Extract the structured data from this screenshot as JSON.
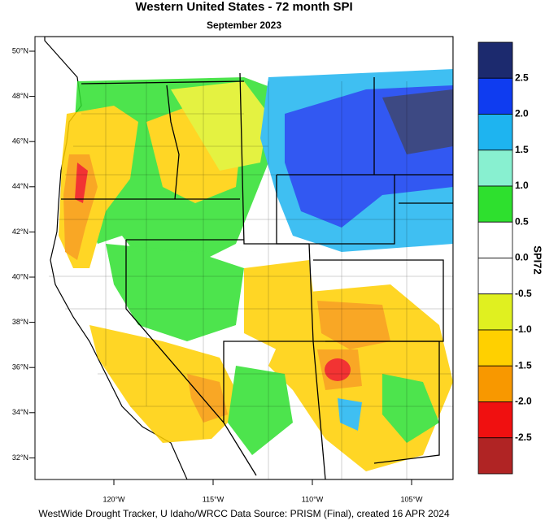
{
  "header": {
    "title": "Western United States - 72 month SPI",
    "subtitle": "September 2023"
  },
  "map": {
    "lat_labels": [
      "50°N",
      "48°N",
      "46°N",
      "44°N",
      "42°N",
      "40°N",
      "38°N",
      "36°N",
      "34°N",
      "32°N"
    ],
    "lon_labels": [
      "120°W",
      "115°W",
      "110°W",
      "105°W"
    ]
  },
  "colorbar": {
    "title": "SPI72",
    "labels": [
      "2.5",
      "2.0",
      "1.5",
      "1.0",
      "0.5",
      "0.0",
      "-0.5",
      "-1.0",
      "-1.5",
      "-2.0",
      "-2.5"
    ],
    "colors": [
      "#1c2a6e",
      "#0f3cf0",
      "#1eb4f0",
      "#88f0d0",
      "#2ee02e",
      "#ffffff",
      "#ffffff",
      "#e0f020",
      "#ffd000",
      "#f89800",
      "#f01010",
      "#b02424"
    ]
  },
  "footer": {
    "credit": "WestWide Drought Tracker, U Idaho/WRCC Data Source: PRISM (Final), created 16 APR 2024"
  }
}
